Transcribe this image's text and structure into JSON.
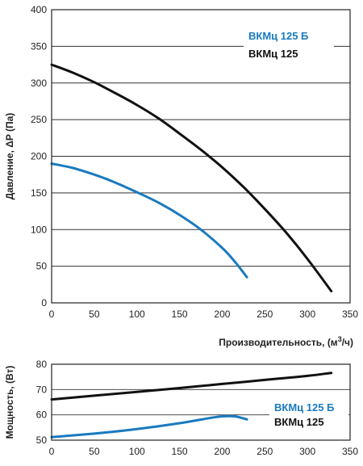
{
  "chart_data": [
    {
      "type": "line",
      "ylabel": "Давление, ΔP (Па)",
      "xlabel": "Производительность, (м³/ч)",
      "xlim": [
        0,
        350
      ],
      "ylim": [
        0,
        400
      ],
      "x_ticks": [
        "0",
        "50",
        "100",
        "150",
        "200",
        "250",
        "300",
        "350"
      ],
      "y_ticks": [
        "0",
        "50",
        "100",
        "150",
        "200",
        "250",
        "300",
        "350",
        "400"
      ],
      "grid": "horizontal",
      "legend_position": "top-right",
      "series": [
        {
          "name": "ВКМц 125 Б",
          "color": "#1a7abf",
          "x": [
            0,
            25,
            50,
            75,
            100,
            125,
            150,
            175,
            200,
            215,
            229
          ],
          "y": [
            190,
            184,
            175,
            164,
            151,
            137,
            120,
            100,
            75,
            56,
            35
          ]
        },
        {
          "name": "ВКМц 125",
          "color": "#111111",
          "x": [
            0,
            25,
            50,
            75,
            100,
            125,
            150,
            175,
            200,
            225,
            250,
            275,
            300,
            328
          ],
          "y": [
            325,
            314,
            301,
            286,
            270,
            252,
            231,
            209,
            185,
            158,
            128,
            96,
            60,
            16
          ]
        }
      ]
    },
    {
      "type": "line",
      "ylabel": "Мощность, (Вт)",
      "xlabel": "",
      "xlim": [
        0,
        350
      ],
      "ylim": [
        50,
        80
      ],
      "x_ticks": [
        "0",
        "50",
        "100",
        "150",
        "200",
        "250",
        "300",
        "350"
      ],
      "y_ticks": [
        "50",
        "60",
        "70",
        "80"
      ],
      "grid": "horizontal",
      "legend_position": "right",
      "series": [
        {
          "name": "ВКМц 125 Б",
          "color": "#1a7abf",
          "x": [
            0,
            50,
            100,
            150,
            185,
            200,
            215,
            229
          ],
          "y": [
            51.2,
            52.6,
            54.4,
            56.7,
            58.7,
            59.4,
            59.4,
            58.2
          ]
        },
        {
          "name": "ВКМц 125",
          "color": "#111111",
          "x": [
            0,
            50,
            100,
            150,
            200,
            250,
            300,
            328
          ],
          "y": [
            66.1,
            67.6,
            69.1,
            70.6,
            72.2,
            73.8,
            75.4,
            76.6
          ]
        }
      ]
    }
  ]
}
